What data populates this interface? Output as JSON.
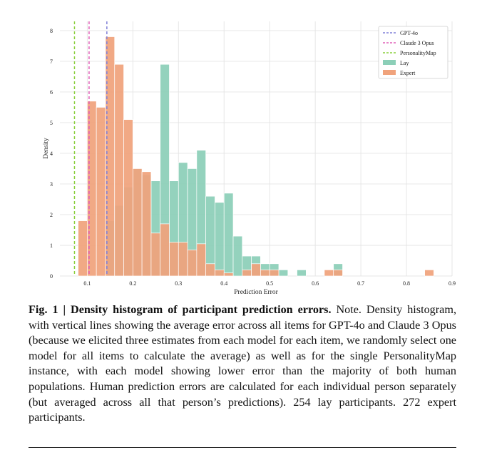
{
  "chart_data": {
    "type": "histogram",
    "title": "",
    "xlabel": "Prediction Error",
    "ylabel": "Density",
    "xlim": [
      0.04,
      0.9
    ],
    "ylim": [
      0,
      8.3
    ],
    "xticks": [
      "0.1",
      "0.2",
      "0.3",
      "0.4",
      "0.5",
      "0.6",
      "0.7",
      "0.8",
      "0.9"
    ],
    "yticks": [
      "0",
      "1",
      "2",
      "3",
      "4",
      "5",
      "6",
      "7",
      "8"
    ],
    "grid": true,
    "legend_position": "top-right",
    "bin_width": 0.02,
    "series": [
      {
        "name": "Lay",
        "color": "#8ccfb8",
        "bins": [
          {
            "x": 0.15,
            "v": 1.8
          },
          {
            "x": 0.17,
            "v": 2.3
          },
          {
            "x": 0.19,
            "v": 2.9
          },
          {
            "x": 0.21,
            "v": 3.5
          },
          {
            "x": 0.23,
            "v": 3.3
          },
          {
            "x": 0.25,
            "v": 3.1
          },
          {
            "x": 0.27,
            "v": 6.9
          },
          {
            "x": 0.29,
            "v": 3.1
          },
          {
            "x": 0.31,
            "v": 3.7
          },
          {
            "x": 0.33,
            "v": 3.5
          },
          {
            "x": 0.35,
            "v": 4.1
          },
          {
            "x": 0.37,
            "v": 2.6
          },
          {
            "x": 0.39,
            "v": 2.4
          },
          {
            "x": 0.41,
            "v": 2.7
          },
          {
            "x": 0.43,
            "v": 1.3
          },
          {
            "x": 0.45,
            "v": 0.65
          },
          {
            "x": 0.47,
            "v": 0.65
          },
          {
            "x": 0.49,
            "v": 0.4
          },
          {
            "x": 0.51,
            "v": 0.4
          },
          {
            "x": 0.53,
            "v": 0.2
          },
          {
            "x": 0.57,
            "v": 0.2
          },
          {
            "x": 0.65,
            "v": 0.4
          }
        ]
      },
      {
        "name": "Expert",
        "color": "#f0a37c",
        "bins": [
          {
            "x": 0.09,
            "v": 1.8
          },
          {
            "x": 0.11,
            "v": 5.7
          },
          {
            "x": 0.13,
            "v": 5.5
          },
          {
            "x": 0.15,
            "v": 7.8
          },
          {
            "x": 0.17,
            "v": 6.9
          },
          {
            "x": 0.19,
            "v": 5.1
          },
          {
            "x": 0.21,
            "v": 3.5
          },
          {
            "x": 0.23,
            "v": 3.4
          },
          {
            "x": 0.25,
            "v": 1.4
          },
          {
            "x": 0.27,
            "v": 1.7
          },
          {
            "x": 0.29,
            "v": 1.1
          },
          {
            "x": 0.31,
            "v": 1.1
          },
          {
            "x": 0.33,
            "v": 0.85
          },
          {
            "x": 0.35,
            "v": 1.05
          },
          {
            "x": 0.37,
            "v": 0.4
          },
          {
            "x": 0.39,
            "v": 0.2
          },
          {
            "x": 0.41,
            "v": 0.1
          },
          {
            "x": 0.45,
            "v": 0.2
          },
          {
            "x": 0.47,
            "v": 0.4
          },
          {
            "x": 0.49,
            "v": 0.2
          },
          {
            "x": 0.51,
            "v": 0.2
          },
          {
            "x": 0.63,
            "v": 0.2
          },
          {
            "x": 0.65,
            "v": 0.2
          },
          {
            "x": 0.85,
            "v": 0.2
          }
        ]
      }
    ],
    "reference_lines": [
      {
        "name": "GPT-4o",
        "x": 0.143,
        "color": "#8080d8"
      },
      {
        "name": "Claude 3 Opus",
        "x": 0.104,
        "color": "#e060b8"
      },
      {
        "name": "PersonalityMap",
        "x": 0.072,
        "color": "#8ad03c"
      }
    ]
  },
  "caption": {
    "label": "Fig. 1 | Density histogram of participant prediction errors.",
    "text": " Note. Density histogram, with vertical lines showing the average error across all items for GPT-4o and Claude 3 Opus (because we elicited three estimates from each model for each item, we randomly select one model for all items to calculate the average) as well as for the single PersonalityMap instance, with each model showing lower error than the majority of both human populations. Human prediction errors are calculated for each individual person separately (but averaged across all that person’s predictions). 254 lay participants. 272 expert participants."
  }
}
